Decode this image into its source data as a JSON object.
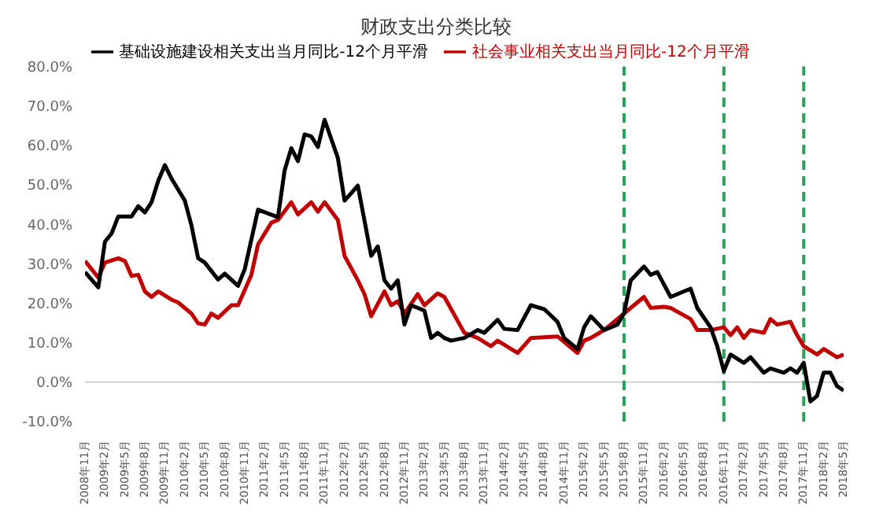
{
  "chart_data": {
    "type": "line",
    "title": "财政支出分类比较",
    "legend": "top",
    "grid": false,
    "line_style": "solid",
    "marker": "none",
    "xlim": [
      "2008-11",
      "2018-05"
    ],
    "xticks": [
      {
        "value": "2008-11",
        "label": "2008年11月"
      },
      {
        "value": "2009-02",
        "label": "2009年2月"
      },
      {
        "value": "2009-05",
        "label": "2009年5月"
      },
      {
        "value": "2009-08",
        "label": "2009年8月"
      },
      {
        "value": "2009-11",
        "label": "2009年11月"
      },
      {
        "value": "2010-02",
        "label": "2010年2月"
      },
      {
        "value": "2010-05",
        "label": "2010年5月"
      },
      {
        "value": "2010-08",
        "label": "2010年8月"
      },
      {
        "value": "2010-11",
        "label": "2010年11月"
      },
      {
        "value": "2011-02",
        "label": "2011年2月"
      },
      {
        "value": "2011-05",
        "label": "2011年5月"
      },
      {
        "value": "2011-08",
        "label": "2011年8月"
      },
      {
        "value": "2011-11",
        "label": "2011年11月"
      },
      {
        "value": "2012-02",
        "label": "2012年2月"
      },
      {
        "value": "2012-05",
        "label": "2012年5月"
      },
      {
        "value": "2012-08",
        "label": "2012年8月"
      },
      {
        "value": "2012-11",
        "label": "2012年11月"
      },
      {
        "value": "2013-02",
        "label": "2013年2月"
      },
      {
        "value": "2013-05",
        "label": "2013年5月"
      },
      {
        "value": "2013-08",
        "label": "2013年8月"
      },
      {
        "value": "2013-11",
        "label": "2013年11月"
      },
      {
        "value": "2014-02",
        "label": "2014年2月"
      },
      {
        "value": "2014-05",
        "label": "2014年5月"
      },
      {
        "value": "2014-08",
        "label": "2014年8月"
      },
      {
        "value": "2014-11",
        "label": "2014年11月"
      },
      {
        "value": "2015-02",
        "label": "2015年2月"
      },
      {
        "value": "2015-05",
        "label": "2015年5月"
      },
      {
        "value": "2015-08",
        "label": "2015年8月"
      },
      {
        "value": "2015-11",
        "label": "2015年11月"
      },
      {
        "value": "2016-02",
        "label": "2016年2月"
      },
      {
        "value": "2016-05",
        "label": "2016年5月"
      },
      {
        "value": "2016-08",
        "label": "2016年8月"
      },
      {
        "value": "2016-11",
        "label": "2016年11月"
      },
      {
        "value": "2017-02",
        "label": "2017年2月"
      },
      {
        "value": "2017-05",
        "label": "2017年5月"
      },
      {
        "value": "2017-08",
        "label": "2017年8月"
      },
      {
        "value": "2017-11",
        "label": "2017年11月"
      },
      {
        "value": "2018-02",
        "label": "2018年2月"
      },
      {
        "value": "2018-05",
        "label": "2018年5月"
      }
    ],
    "ylim": [
      -10,
      80
    ],
    "yticks": [
      {
        "value": -10,
        "label": "-10.0%"
      },
      {
        "value": 0,
        "label": "0.0%"
      },
      {
        "value": 10,
        "label": "10.0%"
      },
      {
        "value": 20,
        "label": "20.0%"
      },
      {
        "value": 30,
        "label": "30.0%"
      },
      {
        "value": 40,
        "label": "40.0%"
      },
      {
        "value": 50,
        "label": "50.0%"
      },
      {
        "value": 60,
        "label": "60.0%"
      },
      {
        "value": 70,
        "label": "70.0%"
      },
      {
        "value": 80,
        "label": "80.0%"
      }
    ],
    "ref_lines": [
      {
        "axis": "x",
        "value": "2015-08",
        "color": "#2e9e5b",
        "line_style": "dashed"
      },
      {
        "axis": "x",
        "value": "2016-11",
        "color": "#2e9e5b",
        "line_style": "dashed"
      },
      {
        "axis": "x",
        "value": "2017-11",
        "color": "#2e9e5b",
        "line_style": "dashed"
      }
    ],
    "series": [
      {
        "name": "社会事业相关支出当月同比-12个月平滑",
        "color": "#c00000",
        "x": [
          "2008-11",
          "2009-01",
          "2009-02",
          "2009-04",
          "2009-05",
          "2009-06",
          "2009-07",
          "2009-08",
          "2009-09",
          "2009-10",
          "2009-12",
          "2010-01",
          "2010-03",
          "2010-04",
          "2010-05",
          "2010-06",
          "2010-07",
          "2010-09",
          "2010-10",
          "2010-12",
          "2011-01",
          "2011-03",
          "2011-04",
          "2011-06",
          "2011-07",
          "2011-09",
          "2011-10",
          "2011-11",
          "2012-01",
          "2012-02",
          "2012-04",
          "2012-05",
          "2012-06",
          "2012-08",
          "2012-09",
          "2012-10",
          "2012-11",
          "2013-01",
          "2013-02",
          "2013-04",
          "2013-05",
          "2013-08",
          "2013-10",
          "2013-12",
          "2014-01",
          "2014-04",
          "2014-06",
          "2014-10",
          "2015-01",
          "2015-02",
          "2015-03",
          "2015-05",
          "2015-07",
          "2015-09",
          "2015-11",
          "2015-12",
          "2016-02",
          "2016-03",
          "2016-06",
          "2016-07",
          "2016-09",
          "2016-11",
          "2016-12",
          "2017-01",
          "2017-02",
          "2017-03",
          "2017-05",
          "2017-06",
          "2017-07",
          "2017-09",
          "2017-10",
          "2017-11",
          "2018-01",
          "2018-02",
          "2018-04",
          "2018-05"
        ],
        "values": [
          30.7,
          26.5,
          30.3,
          31.4,
          30.7,
          26.9,
          27.2,
          23,
          21.6,
          23,
          20.9,
          20.2,
          17.4,
          14.9,
          14.6,
          17.4,
          16.3,
          19.5,
          19.5,
          27.2,
          34.9,
          40.4,
          41.1,
          45.6,
          42.5,
          45.6,
          43.2,
          45.6,
          41.1,
          32,
          25.8,
          22.3,
          16.7,
          23,
          19.5,
          20.5,
          17.4,
          22.3,
          19.5,
          22.5,
          21.6,
          12.5,
          11.2,
          9.1,
          10.5,
          7.4,
          11.2,
          11.6,
          7.4,
          10.5,
          11.2,
          13.2,
          16,
          18.8,
          21.6,
          18.8,
          19.1,
          18.8,
          16,
          13.2,
          13.2,
          13.9,
          11.9,
          13.9,
          11.2,
          13.2,
          12.5,
          16,
          14.6,
          15.3,
          11.9,
          9.1,
          7,
          8.4,
          6.3,
          7
        ]
      },
      {
        "name": "基础设施建设相关支出当月同比-12个月平滑",
        "color": "#000000",
        "x": [
          "2008-11",
          "2009-01",
          "2009-02",
          "2009-03",
          "2009-04",
          "2009-06",
          "2009-07",
          "2009-08",
          "2009-09",
          "2009-10",
          "2009-11",
          "2009-12",
          "2010-02",
          "2010-03",
          "2010-04",
          "2010-05",
          "2010-07",
          "2010-08",
          "2010-10",
          "2010-11",
          "2011-01",
          "2011-04",
          "2011-05",
          "2011-06",
          "2011-07",
          "2011-08",
          "2011-09",
          "2011-10",
          "2011-11",
          "2012-01",
          "2012-02",
          "2012-04",
          "2012-06",
          "2012-07",
          "2012-08",
          "2012-09",
          "2012-10",
          "2012-11",
          "2012-12",
          "2013-02",
          "2013-03",
          "2013-04",
          "2013-05",
          "2013-06",
          "2013-08",
          "2013-10",
          "2013-11",
          "2014-01",
          "2014-02",
          "2014-04",
          "2014-06",
          "2014-08",
          "2014-10",
          "2014-11",
          "2015-01",
          "2015-02",
          "2015-03",
          "2015-05",
          "2015-07",
          "2015-08",
          "2015-09",
          "2015-11",
          "2015-12",
          "2016-01",
          "2016-03",
          "2016-06",
          "2016-07",
          "2016-09",
          "2016-10",
          "2016-11",
          "2016-12",
          "2017-02",
          "2017-03",
          "2017-05",
          "2017-06",
          "2017-08",
          "2017-09",
          "2017-10",
          "2017-11",
          "2017-12",
          "2018-01",
          "2018-02",
          "2018-03",
          "2018-04",
          "2018-05"
        ],
        "values": [
          27.9,
          24,
          35.6,
          37.7,
          42,
          42,
          44.6,
          43,
          45.6,
          51,
          55,
          51.6,
          46,
          39.7,
          31.4,
          30.3,
          26,
          27.5,
          24.4,
          28.6,
          43.7,
          41.8,
          53.7,
          59.3,
          56,
          62.8,
          62.3,
          59.6,
          66.5,
          56.8,
          46,
          49.8,
          32,
          34.4,
          25.8,
          23.7,
          25.8,
          14.6,
          19.5,
          18.1,
          11.2,
          12.5,
          11.2,
          10.5,
          11.2,
          13.2,
          12.5,
          15.8,
          13.5,
          13.2,
          19.5,
          18.5,
          15.3,
          11.2,
          8.4,
          13.9,
          16.7,
          13.2,
          14.6,
          17.4,
          25.8,
          29.3,
          27.2,
          27.9,
          21.6,
          23.7,
          18.8,
          13.9,
          9.1,
          2.8,
          7,
          4.9,
          6.3,
          2.4,
          3.5,
          2.4,
          3.5,
          2.4,
          4.9,
          -4.9,
          -3.5,
          2.4,
          2.4,
          -1,
          -2.1
        ]
      }
    ]
  }
}
